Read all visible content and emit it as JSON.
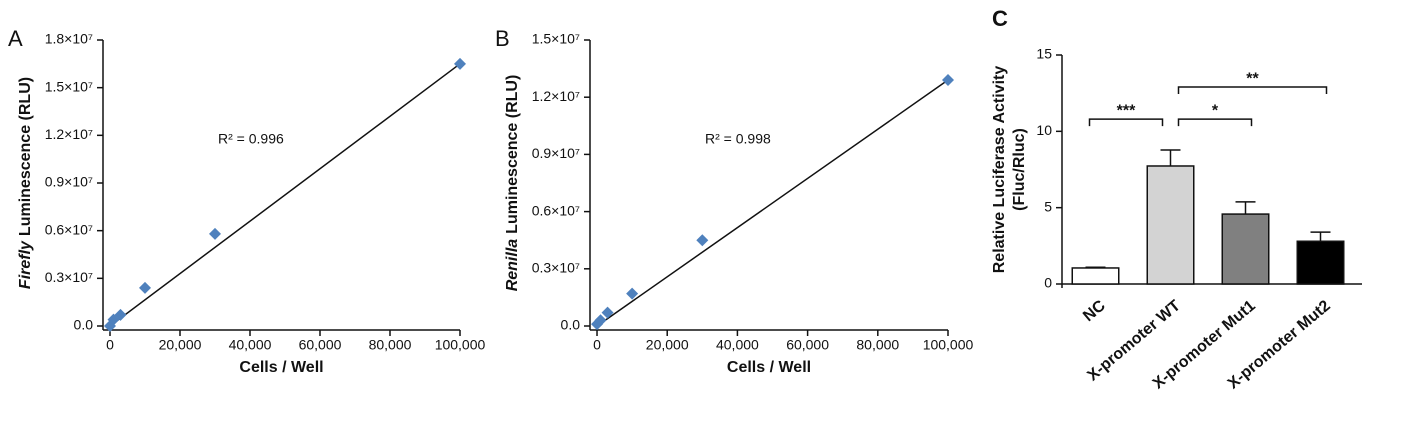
{
  "chart_data": [
    {
      "type": "scatter",
      "panel": "A",
      "ylabel_parts": [
        {
          "text": "Firefly",
          "italic": true
        },
        {
          "text": "Luminescence (RLU)"
        }
      ],
      "xlabel": "Cells / Well",
      "annotation": "R² = 0.996",
      "x": [
        0,
        1000,
        3000,
        10000,
        30000,
        100000
      ],
      "values": [
        0,
        400000,
        700000,
        2400000,
        5800000,
        16500000
      ],
      "color": "#4f81bd",
      "trendline": {
        "x": [
          0,
          100000
        ],
        "y": [
          0,
          16500000
        ]
      },
      "xlim": [
        -2000,
        100000
      ],
      "ylim": [
        0,
        18000000
      ],
      "xticks": [
        0,
        {
          "value": 20000,
          "label": "20,000"
        },
        {
          "value": 40000,
          "label": "40,000"
        },
        {
          "value": 60000,
          "label": "60,000"
        },
        {
          "value": 80000,
          "label": "80,000"
        },
        {
          "value": 100000,
          "label": "100,000"
        }
      ],
      "yticks": [
        {
          "value": 0,
          "label": "0.0"
        },
        {
          "value": 3000000,
          "label": "0.3×10⁷"
        },
        {
          "value": 6000000,
          "label": "0.6×10⁷"
        },
        {
          "value": 9000000,
          "label": "0.9×10⁷"
        },
        {
          "value": 12000000,
          "label": "1.2×10⁷"
        },
        {
          "value": 15000000,
          "label": "1.5×10⁷"
        },
        {
          "value": 18000000,
          "label": "1.8×10⁷"
        }
      ]
    },
    {
      "type": "scatter",
      "panel": "B",
      "ylabel_parts": [
        {
          "text": "Renilla",
          "italic": true
        },
        {
          "text": "Luminescence (RLU)"
        }
      ],
      "xlabel": "Cells / Well",
      "annotation": "R² = 0.998",
      "x": [
        0,
        1000,
        3000,
        10000,
        30000,
        100000
      ],
      "values": [
        100000,
        300000,
        700000,
        1700000,
        4500000,
        12900000
      ],
      "color": "#4f81bd",
      "trendline": {
        "x": [
          0,
          100000
        ],
        "y": [
          0,
          12900000
        ]
      },
      "xlim": [
        -2000,
        100000
      ],
      "ylim": [
        0,
        15000000
      ],
      "xticks": [
        0,
        {
          "value": 20000,
          "label": "20,000"
        },
        {
          "value": 40000,
          "label": "40,000"
        },
        {
          "value": 60000,
          "label": "60,000"
        },
        {
          "value": 80000,
          "label": "80,000"
        },
        {
          "value": 100000,
          "label": "100,000"
        }
      ],
      "yticks": [
        {
          "value": 0,
          "label": "0.0"
        },
        {
          "value": 3000000,
          "label": "0.3×10⁷"
        },
        {
          "value": 6000000,
          "label": "0.6×10⁷"
        },
        {
          "value": 9000000,
          "label": "0.9×10⁷"
        },
        {
          "value": 12000000,
          "label": "1.2×10⁷"
        },
        {
          "value": 15000000,
          "label": "1.5×10⁷"
        }
      ]
    },
    {
      "type": "bar",
      "panel": "C",
      "ylabel_lines": [
        "Relative Luciferase Activity",
        "(Fluc/Rluc)"
      ],
      "categories": [
        "NC",
        "X-promoter WT",
        "X-promoter Mut1",
        "X-promoter Mut2"
      ],
      "values": [
        1.05,
        7.73,
        4.58,
        2.8
      ],
      "errors": [
        0.05,
        1.05,
        0.8,
        0.6
      ],
      "colors": [
        "#ffffff",
        "#d3d3d3",
        "#808080",
        "#000000"
      ],
      "ylim": [
        0,
        15
      ],
      "yticks": [
        0,
        5,
        10,
        15
      ],
      "brackets": [
        {
          "between": [
            "NC",
            "X-promoter WT"
          ],
          "y": 10.8,
          "text": "***"
        },
        {
          "between": [
            "X-promoter WT",
            "X-promoter Mut1"
          ],
          "y": 10.8,
          "text": "*"
        },
        {
          "between": [
            "X-promoter WT",
            "X-promoter Mut2"
          ],
          "y": 12.9,
          "text": "**"
        }
      ]
    }
  ]
}
